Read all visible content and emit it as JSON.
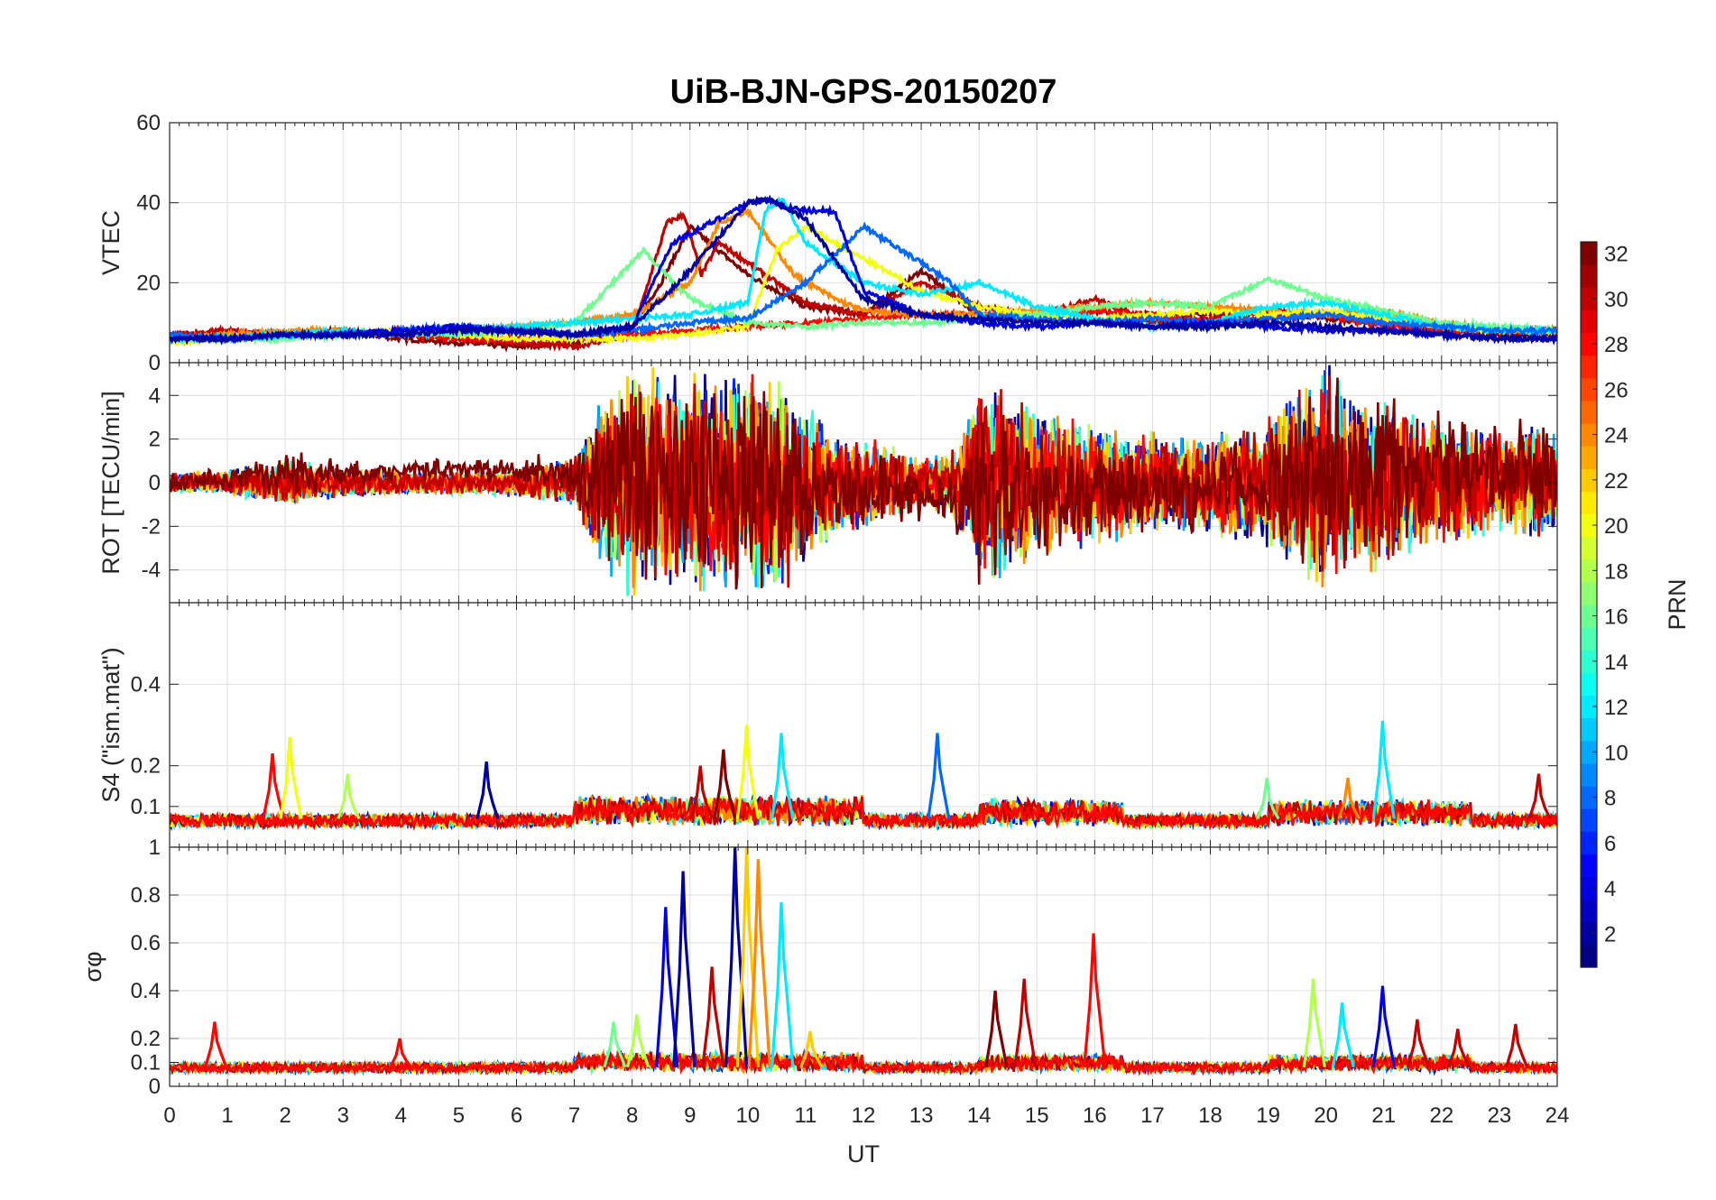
{
  "chart_data": {
    "type": "line",
    "title": "UiB-BJN-GPS-20150207",
    "xlabel": "UT",
    "xlim": [
      0,
      24
    ],
    "xticks": [
      0,
      1,
      2,
      3,
      4,
      5,
      6,
      7,
      8,
      9,
      10,
      11,
      12,
      13,
      14,
      15,
      16,
      17,
      18,
      19,
      20,
      21,
      22,
      23,
      24
    ],
    "colorbar": {
      "label": "PRN",
      "range": [
        1,
        32
      ],
      "ticks": [
        2,
        4,
        6,
        8,
        10,
        12,
        14,
        16,
        18,
        20,
        22,
        24,
        26,
        28,
        30,
        32
      ],
      "colormap": "jet"
    },
    "panels": [
      {
        "id": "vtec",
        "ylabel": "VTEC",
        "ylim": [
          0,
          60
        ],
        "yticks": [
          0,
          20,
          40,
          60
        ],
        "series": [
          {
            "prn": 32,
            "x": [
              0,
              1,
              2,
              3,
              4,
              5,
              6,
              7,
              8,
              8.5,
              9,
              9.5,
              10,
              10.5,
              11,
              12,
              13,
              14,
              15,
              16,
              17,
              18,
              19,
              20,
              21,
              22,
              23,
              24
            ],
            "y": [
              6,
              7,
              7,
              8,
              6,
              5,
              4,
              5,
              9,
              20,
              34,
              28,
              22,
              18,
              14,
              12,
              23,
              12,
              11,
              13,
              12,
              12,
              13,
              11,
              10,
              8,
              7,
              7
            ]
          },
          {
            "prn": 30,
            "x": [
              0,
              1,
              2,
              3,
              4,
              5,
              6,
              7,
              8,
              8.6,
              8.9,
              9.2,
              9.5,
              10,
              10.5,
              11,
              12,
              13,
              14,
              15,
              16,
              17,
              18,
              19,
              20,
              21,
              22,
              23,
              24
            ],
            "y": [
              7,
              8,
              7,
              7,
              8,
              6,
              5,
              4,
              7,
              35,
              37,
              22,
              30,
              25,
              20,
              15,
              12,
              20,
              14,
              12,
              16,
              10,
              11,
              13,
              12,
              10,
              9,
              8,
              8
            ]
          },
          {
            "prn": 28,
            "x": [
              0,
              1,
              2,
              3,
              4,
              5,
              6,
              7,
              8,
              9,
              10,
              11,
              12,
              13,
              14,
              15,
              16,
              17,
              18,
              19,
              20,
              21,
              22,
              23,
              24
            ],
            "y": [
              6,
              6,
              7,
              8,
              7,
              6,
              6,
              6,
              7,
              8,
              9,
              10,
              11,
              12,
              12,
              11,
              13,
              12,
              10,
              11,
              12,
              9,
              8,
              8,
              8
            ]
          },
          {
            "prn": 24,
            "x": [
              0,
              1,
              2,
              3,
              4,
              5,
              6,
              7,
              8,
              9,
              9.5,
              10,
              10.3,
              10.8,
              11.5,
              12,
              13,
              14,
              15,
              16,
              17,
              18,
              19,
              20,
              21,
              22,
              23,
              24
            ],
            "y": [
              6,
              7,
              8,
              8,
              7,
              8,
              9,
              10,
              12,
              20,
              35,
              38,
              32,
              22,
              16,
              13,
              12,
              12,
              13,
              14,
              15,
              14,
              13,
              12,
              13,
              10,
              8,
              8
            ]
          },
          {
            "prn": 20,
            "x": [
              0,
              1,
              2,
              3,
              4,
              5,
              6,
              7,
              8,
              9,
              10,
              10.5,
              11,
              11.5,
              12,
              13,
              14,
              15,
              16,
              17,
              18,
              19,
              20,
              21,
              22,
              23,
              24
            ],
            "y": [
              5,
              6,
              7,
              7,
              8,
              7,
              6,
              6,
              6,
              7,
              9,
              28,
              34,
              30,
              26,
              18,
              14,
              12,
              11,
              12,
              13,
              12,
              13,
              11,
              9,
              8,
              8
            ]
          },
          {
            "prn": 16,
            "x": [
              0,
              1,
              2,
              3,
              4,
              5,
              6,
              7,
              7.8,
              8.2,
              9,
              10,
              11,
              12,
              13,
              14,
              15,
              16,
              17,
              18,
              19,
              20,
              21,
              22,
              23,
              24
            ],
            "y": [
              6,
              6,
              6,
              7,
              8,
              7,
              8,
              10,
              22,
              28,
              16,
              10,
              9,
              10,
              10,
              11,
              12,
              14,
              15,
              14,
              21,
              16,
              13,
              10,
              9,
              8
            ]
          },
          {
            "prn": 12,
            "x": [
              0,
              1,
              2,
              3,
              4,
              5,
              6,
              7,
              8,
              9,
              10,
              10.3,
              10.6,
              11,
              12,
              13,
              14,
              15,
              16,
              17,
              18,
              19,
              20,
              21,
              22,
              23,
              24
            ],
            "y": [
              6,
              6,
              7,
              8,
              7,
              8,
              9,
              10,
              11,
              12,
              15,
              38,
              41,
              30,
              20,
              17,
              20,
              14,
              11,
              9,
              10,
              14,
              15,
              12,
              9,
              8,
              8
            ]
          },
          {
            "prn": 8,
            "x": [
              0,
              1,
              2,
              3,
              4,
              5,
              6,
              7,
              8,
              9,
              10,
              11,
              12,
              13,
              13.5,
              14,
              15,
              16,
              17,
              18,
              19,
              20,
              21,
              22,
              23,
              24
            ],
            "y": [
              7,
              6,
              7,
              7,
              8,
              9,
              8,
              7,
              8,
              10,
              11,
              20,
              34,
              25,
              20,
              12,
              11,
              10,
              11,
              10,
              11,
              12,
              10,
              9,
              8,
              8
            ]
          },
          {
            "prn": 4,
            "x": [
              0,
              1,
              2,
              3,
              4,
              5,
              6,
              7,
              8,
              8.7,
              9.5,
              10,
              10.3,
              10.6,
              11,
              11.5,
              12,
              13,
              14,
              15,
              16,
              17,
              18,
              19,
              20,
              21,
              22,
              23,
              24
            ],
            "y": [
              6,
              6,
              7,
              7,
              8,
              9,
              8,
              7,
              9,
              30,
              36,
              40,
              41,
              39,
              38,
              38,
              18,
              12,
              10,
              9,
              10,
              9,
              10,
              9,
              8,
              8,
              7,
              6,
              6
            ]
          },
          {
            "prn": 2,
            "x": [
              0,
              1,
              2,
              3,
              4,
              5,
              6,
              7,
              8,
              8.8,
              9.3,
              10,
              10.4,
              11,
              12,
              13,
              14,
              15,
              16,
              17,
              18,
              19,
              20,
              21,
              22,
              23,
              24
            ],
            "y": [
              6,
              6,
              7,
              7,
              7,
              8,
              8,
              7,
              9,
              20,
              28,
              40,
              41,
              36,
              16,
              12,
              11,
              10,
              10,
              9,
              9,
              10,
              9,
              8,
              7,
              6,
              6
            ]
          }
        ]
      },
      {
        "id": "rot",
        "ylabel": "ROT [TECU/min]",
        "ylim": [
          -5.5,
          5.5
        ],
        "yticks": [
          -4,
          -2,
          0,
          2,
          4
        ],
        "envelope": {
          "x": [
            0,
            1,
            2,
            3,
            4,
            5,
            6,
            7,
            7.5,
            8,
            8.5,
            9,
            9.5,
            10,
            10.5,
            11,
            11.5,
            12,
            12.5,
            13,
            13.5,
            14,
            14.5,
            15,
            16,
            17,
            18,
            19,
            20,
            21,
            22,
            23,
            24
          ],
          "amp": [
            0.5,
            0.6,
            1.2,
            0.7,
            0.6,
            0.6,
            0.7,
            1.2,
            4.5,
            5.5,
            5.5,
            5.0,
            5.5,
            5.5,
            5.5,
            4.0,
            2.5,
            2.2,
            1.8,
            1.2,
            1.6,
            4.5,
            4.5,
            3.5,
            3.0,
            2.5,
            2.5,
            3.5,
            5.5,
            4.0,
            3.0,
            2.5,
            3.0
          ]
        }
      },
      {
        "id": "s4",
        "ylabel": "S4 (\"ism.mat\")",
        "ylim": [
          0,
          0.6
        ],
        "yticks": [
          0.1,
          0.2,
          0.4
        ],
        "baseline": 0.05,
        "peaks": [
          {
            "x": 1.8,
            "y": 0.23,
            "prn": 28
          },
          {
            "x": 2.1,
            "y": 0.27,
            "prn": 20
          },
          {
            "x": 3.1,
            "y": 0.18,
            "prn": 18
          },
          {
            "x": 5.5,
            "y": 0.21,
            "prn": 2
          },
          {
            "x": 9.2,
            "y": 0.2,
            "prn": 30
          },
          {
            "x": 9.6,
            "y": 0.24,
            "prn": 32
          },
          {
            "x": 10.0,
            "y": 0.3,
            "prn": 20
          },
          {
            "x": 10.6,
            "y": 0.28,
            "prn": 12
          },
          {
            "x": 13.3,
            "y": 0.28,
            "prn": 8
          },
          {
            "x": 19.0,
            "y": 0.17,
            "prn": 16
          },
          {
            "x": 20.4,
            "y": 0.17,
            "prn": 24
          },
          {
            "x": 21.0,
            "y": 0.31,
            "prn": 12
          },
          {
            "x": 23.7,
            "y": 0.18,
            "prn": 30
          }
        ]
      },
      {
        "id": "sigphi",
        "ylabel": "σφ",
        "ylim": [
          0,
          1
        ],
        "yticks": [
          0,
          0.1,
          0.2,
          0.4,
          0.6,
          0.8,
          1
        ],
        "baseline": 0.06,
        "peaks": [
          {
            "x": 0.8,
            "y": 0.27,
            "prn": 28
          },
          {
            "x": 4.0,
            "y": 0.2,
            "prn": 28
          },
          {
            "x": 7.7,
            "y": 0.27,
            "prn": 16
          },
          {
            "x": 8.1,
            "y": 0.3,
            "prn": 18
          },
          {
            "x": 8.6,
            "y": 0.75,
            "prn": 4
          },
          {
            "x": 8.9,
            "y": 0.9,
            "prn": 2
          },
          {
            "x": 9.4,
            "y": 0.5,
            "prn": 30
          },
          {
            "x": 9.8,
            "y": 1.0,
            "prn": 2
          },
          {
            "x": 10.0,
            "y": 1.0,
            "prn": 22
          },
          {
            "x": 10.2,
            "y": 0.95,
            "prn": 24
          },
          {
            "x": 10.6,
            "y": 0.77,
            "prn": 12
          },
          {
            "x": 11.1,
            "y": 0.23,
            "prn": 22
          },
          {
            "x": 14.3,
            "y": 0.4,
            "prn": 32
          },
          {
            "x": 14.8,
            "y": 0.45,
            "prn": 30
          },
          {
            "x": 16.0,
            "y": 0.64,
            "prn": 28
          },
          {
            "x": 19.8,
            "y": 0.45,
            "prn": 18
          },
          {
            "x": 20.3,
            "y": 0.35,
            "prn": 12
          },
          {
            "x": 21.0,
            "y": 0.42,
            "prn": 4
          },
          {
            "x": 21.6,
            "y": 0.28,
            "prn": 30
          },
          {
            "x": 22.3,
            "y": 0.24,
            "prn": 30
          },
          {
            "x": 23.3,
            "y": 0.26,
            "prn": 30
          }
        ]
      }
    ]
  }
}
